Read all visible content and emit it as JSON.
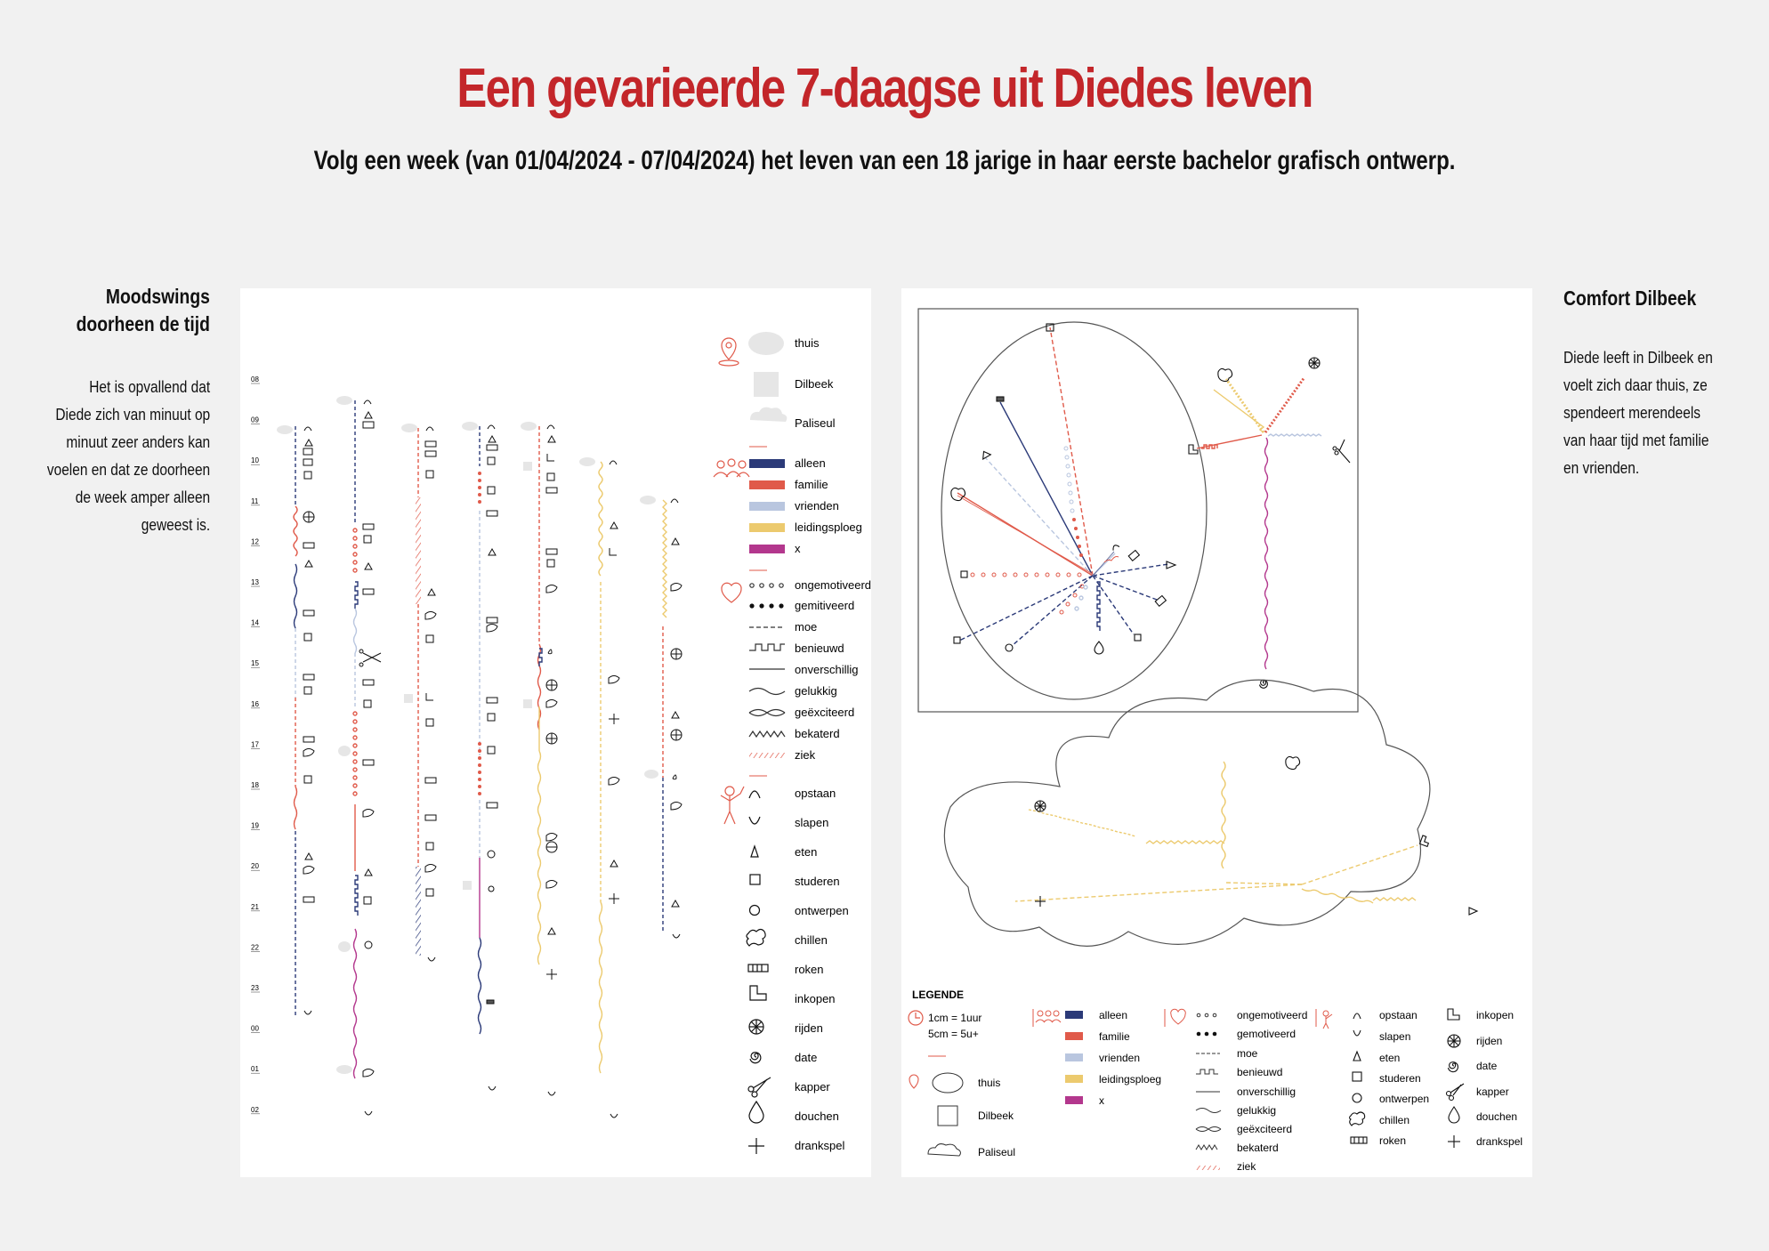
{
  "title": "Een gevarieerde 7-daagse uit Diedes leven",
  "subtitle": "Volg een week (van 01/04/2024 - 07/04/2024) het leven van een 18 jarige in haar eerste bachelor grafisch ontwerp.",
  "left_side": {
    "heading_line1": "Moodswings",
    "heading_line2": "doorheen de tijd",
    "text_lines": [
      "Het is opvallend dat",
      "Diede zich van minuut op",
      "minuut zeer anders kan",
      "voelen en dat ze doorheen",
      "de week amper alleen",
      "geweest is."
    ]
  },
  "right_side": {
    "heading": "Comfort Dilbeek",
    "text_lines": [
      "Diede leeft in Dilbeek en",
      "voelt zich daar thuis, ze",
      "spendeert merendeels",
      "van haar tijd met familie",
      "en vrienden."
    ]
  },
  "hours": [
    "08",
    "09",
    "10",
    "11",
    "12",
    "13",
    "14",
    "15",
    "16",
    "17",
    "18",
    "19",
    "20",
    "21",
    "22",
    "23",
    "00",
    "01",
    "02"
  ],
  "colors": {
    "title": "#c3262a",
    "alleen": "#2b3a78",
    "familie": "#e05a4a",
    "vrienden": "#b9c6df",
    "leidingsploeg": "#ecca6e",
    "x": "#b3378d",
    "icon_red": "#e05a4a",
    "bubble": "#e6e6e6"
  },
  "legend_main": {
    "places": [
      {
        "label": "thuis",
        "icon": "ellipse-shape"
      },
      {
        "label": "Dilbeek",
        "icon": "square-shape"
      },
      {
        "label": "Paliseul",
        "icon": "cloud-shape"
      }
    ],
    "company": [
      {
        "label": "alleen",
        "color": "#2b3a78"
      },
      {
        "label": "familie",
        "color": "#e05a4a"
      },
      {
        "label": "vrienden",
        "color": "#b9c6df"
      },
      {
        "label": "leidingsploeg",
        "color": "#ecca6e"
      },
      {
        "label": "x",
        "color": "#b3378d"
      }
    ],
    "moods": [
      {
        "label": "ongemotiveerd",
        "line": "open-dots"
      },
      {
        "label": "gemitiveerd",
        "line": "filled-dots"
      },
      {
        "label": "moe",
        "line": "dashed"
      },
      {
        "label": "benieuwd",
        "line": "square-wave"
      },
      {
        "label": "onverschillig",
        "line": "straight"
      },
      {
        "label": "gelukkig",
        "line": "wave"
      },
      {
        "label": "geëxciteerd",
        "line": "braid"
      },
      {
        "label": "bekaterd",
        "line": "zigzag"
      },
      {
        "label": "ziek",
        "line": "hatch"
      }
    ],
    "activities": [
      {
        "label": "opstaan",
        "icon": "arch-icon"
      },
      {
        "label": "slapen",
        "icon": "cup-icon"
      },
      {
        "label": "eten",
        "icon": "triangle-icon"
      },
      {
        "label": "studeren",
        "icon": "square-icon"
      },
      {
        "label": "ontwerpen",
        "icon": "circle-icon"
      },
      {
        "label": "chillen",
        "icon": "blob-icon"
      },
      {
        "label": "roken",
        "icon": "cigarette-icon"
      },
      {
        "label": "inkopen",
        "icon": "boot-icon"
      },
      {
        "label": "rijden",
        "icon": "wheel-icon"
      },
      {
        "label": "date",
        "icon": "spiral-icon"
      },
      {
        "label": "kapper",
        "icon": "scissors-icon"
      },
      {
        "label": "douchen",
        "icon": "drop-icon"
      },
      {
        "label": "drankspel",
        "icon": "plus-icon"
      }
    ]
  },
  "legend_bottom": {
    "heading": "LEGENDE",
    "scale_line1": "1cm = 1uur",
    "scale_line2": "5cm = 5u+",
    "places": [
      "thuis",
      "Dilbeek",
      "Paliseul"
    ],
    "company": [
      "alleen",
      "familie",
      "vrienden",
      "leidingsploeg",
      "x"
    ],
    "moods": [
      "ongemotiveerd",
      "gemotiveerd",
      "moe",
      "benieuwd",
      "onverschillig",
      "gelukkig",
      "geëxciteerd",
      "bekaterd",
      "ziek"
    ],
    "activities_col1": [
      "opstaan",
      "slapen",
      "eten",
      "studeren",
      "ontwerpen",
      "chillen",
      "roken"
    ],
    "activities_col2": [
      "inkopen",
      "rijden",
      "date",
      "kapper",
      "douchen",
      "drankspel"
    ]
  }
}
